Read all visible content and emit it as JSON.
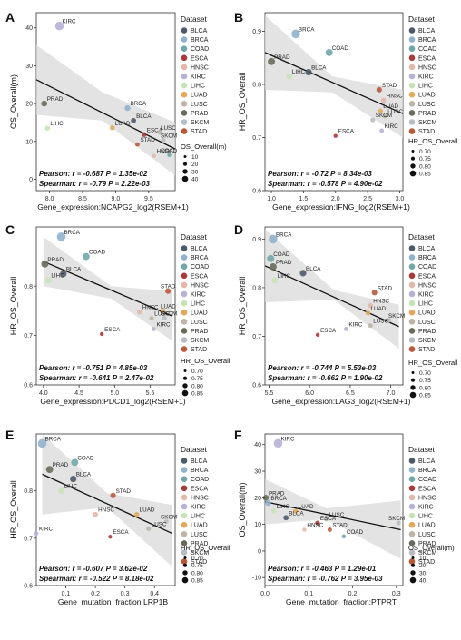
{
  "palette": {
    "BLCA": "#4d5a6b",
    "BRCA": "#8fb3cf",
    "COAD": "#6fa8a8",
    "ESCA": "#a83a3a",
    "HNSC": "#e3b8a8",
    "KIRC": "#b9b0d8",
    "LIHC": "#c6e3b6",
    "LUAD": "#e3a85a",
    "LUSC": "#bdb6a6",
    "PRAD": "#6a6a5a",
    "SKCM": "#b7bdc3",
    "STAD": "#b85a38"
  },
  "chart_data": [
    {
      "type": "scatter",
      "panel": "A",
      "xlabel": "Gene_expression:NCAPG2_log2(RSEM+1)",
      "ylabel": "OS_Overall(m)",
      "xlim": [
        7.8,
        9.9
      ],
      "ylim": [
        -3,
        44
      ],
      "xticks": [
        8.0,
        8.5,
        9.0,
        9.5
      ],
      "xtick_labels": [
        "8.0",
        "8.5",
        "9.0",
        "9.5"
      ],
      "yticks": [
        0,
        10,
        20,
        30,
        40
      ],
      "yreverse": false,
      "fit": [
        [
          7.8,
          26.3
        ],
        [
          9.9,
          8.0
        ]
      ],
      "band_upper": [
        [
          7.8,
          35.5
        ],
        [
          8.8,
          23.0
        ],
        [
          9.9,
          15.0
        ]
      ],
      "band_lower": [
        [
          7.8,
          17.0
        ],
        [
          8.8,
          15.5
        ],
        [
          9.9,
          1.0
        ]
      ],
      "points": [
        {
          "label": "KIRC",
          "x": 8.15,
          "y": 40.5,
          "size": 40
        },
        {
          "label": "PRAD",
          "x": 7.92,
          "y": 20.0,
          "size": 20
        },
        {
          "label": "LIHC",
          "x": 7.97,
          "y": 13.5,
          "size": 14
        },
        {
          "label": "BRCA",
          "x": 9.18,
          "y": 18.8,
          "size": 19
        },
        {
          "label": "BLCA",
          "x": 9.27,
          "y": 15.5,
          "size": 15
        },
        {
          "label": "LUAD",
          "x": 8.95,
          "y": 13.6,
          "size": 13
        },
        {
          "label": "ESCA",
          "x": 9.43,
          "y": 11.8,
          "size": 12
        },
        {
          "label": "LUSC",
          "x": 9.67,
          "y": 12.4,
          "size": 12
        },
        {
          "label": "SKCM",
          "x": 9.72,
          "y": 10.3,
          "size": 10
        },
        {
          "label": "STAD",
          "x": 9.33,
          "y": 9.2,
          "size": 9
        },
        {
          "label": "HNSC",
          "x": 9.58,
          "y": 6.2,
          "size": 6
        },
        {
          "label": "COAD",
          "x": 9.81,
          "y": 6.4,
          "size": 6
        }
      ],
      "stat_line1": "Pearson: r = -0.687 P = 1.35e-02",
      "stat_line2": "Spearman: r = -0.79 P = 2.22e-03",
      "legend_title": "Dataset",
      "legend_items": [
        "BLCA",
        "BRCA",
        "COAD",
        "ESCA",
        "HNSC",
        "KIRC",
        "LIHC",
        "LUAD",
        "LUSC",
        "PRAD",
        "SKCM",
        "STAD"
      ],
      "size_title": "OS_Overall(m)",
      "size_labels": [
        "10",
        "20",
        "30",
        "40"
      ]
    },
    {
      "type": "scatter",
      "panel": "B",
      "xlabel": "Gene_expression:IFNG_log2(RSEM+1)",
      "ylabel": "HR_OS_Overall",
      "xlim": [
        0.9,
        3.05
      ],
      "ylim": [
        0.6,
        0.935
      ],
      "xticks": [
        1.0,
        1.5,
        2.0,
        2.5,
        3.0
      ],
      "xtick_labels": [
        "1.0",
        "1.5",
        "2.0",
        "2.5",
        "3.0"
      ],
      "yticks": [
        0.6,
        0.7,
        0.8,
        0.9
      ],
      "yreverse": false,
      "fit": [
        [
          0.9,
          0.86
        ],
        [
          3.05,
          0.745
        ]
      ],
      "band_upper": [
        [
          0.9,
          0.93
        ],
        [
          1.95,
          0.815
        ],
        [
          3.05,
          0.79
        ]
      ],
      "band_lower": [
        [
          0.9,
          0.79
        ],
        [
          1.95,
          0.785
        ],
        [
          3.05,
          0.7
        ]
      ],
      "points": [
        {
          "label": "BRCA",
          "x": 1.38,
          "y": 0.895,
          "size": 0.85
        },
        {
          "label": "COAD",
          "x": 1.9,
          "y": 0.86,
          "size": 0.8
        },
        {
          "label": "PRAD",
          "x": 1.0,
          "y": 0.843,
          "size": 0.8
        },
        {
          "label": "BLCA",
          "x": 1.58,
          "y": 0.823,
          "size": 0.78
        },
        {
          "label": "LIHC",
          "x": 1.28,
          "y": 0.815,
          "size": 0.77
        },
        {
          "label": "STAD",
          "x": 2.68,
          "y": 0.79,
          "size": 0.75
        },
        {
          "label": "HNSC",
          "x": 2.75,
          "y": 0.77,
          "size": 0.74
        },
        {
          "label": "LUAD",
          "x": 2.7,
          "y": 0.75,
          "size": 0.73
        },
        {
          "label": "LUSC",
          "x": 2.77,
          "y": 0.74,
          "size": 0.72
        },
        {
          "label": "SKCM",
          "x": 2.58,
          "y": 0.733,
          "size": 0.72
        },
        {
          "label": "KIRC",
          "x": 2.72,
          "y": 0.713,
          "size": 0.71
        },
        {
          "label": "ESCA",
          "x": 2.0,
          "y": 0.703,
          "size": 0.7
        }
      ],
      "stat_line1": "Pearson: r = -0.72 P = 8.34e-03",
      "stat_line2": "Spearman: r = -0.578 P = 4.90e-02",
      "legend_title": "Dataset",
      "legend_items": [
        "BLCA",
        "BRCA",
        "COAD",
        "ESCA",
        "HNSC",
        "KIRC",
        "LIHC",
        "LUAD",
        "LUSC",
        "PRAD",
        "SKCM",
        "STAD"
      ],
      "size_title": "HR_OS_Overall",
      "size_labels": [
        "0.70",
        "0.75",
        "0.80",
        "0.85"
      ]
    },
    {
      "type": "scatter",
      "panel": "C",
      "xlabel": "Gene_expression:PDCD1_log2(RSEM+1)",
      "ylabel": "HR_OS_Overall",
      "xlim": [
        3.9,
        5.85
      ],
      "ylim": [
        0.6,
        0.92
      ],
      "xticks": [
        4.0,
        4.5,
        5.0,
        5.5
      ],
      "xtick_labels": [
        "4.0",
        "4.5",
        "5.0",
        "5.5"
      ],
      "yticks": [
        0.6,
        0.7,
        0.8
      ],
      "yreverse": false,
      "fit": [
        [
          4.0,
          0.85
        ],
        [
          5.8,
          0.74
        ]
      ],
      "band_upper": [
        [
          4.0,
          0.9
        ],
        [
          4.95,
          0.8
        ],
        [
          5.8,
          0.79
        ]
      ],
      "band_lower": [
        [
          4.0,
          0.8
        ],
        [
          4.95,
          0.775
        ],
        [
          5.8,
          0.69
        ]
      ],
      "points": [
        {
          "label": "BRCA",
          "x": 4.25,
          "y": 0.9,
          "size": 0.85
        },
        {
          "label": "COAD",
          "x": 4.6,
          "y": 0.86,
          "size": 0.8
        },
        {
          "label": "PRAD",
          "x": 4.02,
          "y": 0.845,
          "size": 0.8
        },
        {
          "label": "BLCA",
          "x": 4.28,
          "y": 0.825,
          "size": 0.78
        },
        {
          "label": "LIHC",
          "x": 4.07,
          "y": 0.812,
          "size": 0.77
        },
        {
          "label": "STAD",
          "x": 5.75,
          "y": 0.79,
          "size": 0.75
        },
        {
          "label": "LUAD",
          "x": 5.68,
          "y": 0.75,
          "size": 0.73
        },
        {
          "label": "HNSC",
          "x": 5.35,
          "y": 0.748,
          "size": 0.74
        },
        {
          "label": "LUSC",
          "x": 5.52,
          "y": 0.735,
          "size": 0.72
        },
        {
          "label": "SKCM",
          "x": 5.7,
          "y": 0.735,
          "size": 0.72
        },
        {
          "label": "KIRC",
          "x": 5.55,
          "y": 0.713,
          "size": 0.71
        },
        {
          "label": "ESCA",
          "x": 4.82,
          "y": 0.703,
          "size": 0.7
        }
      ],
      "stat_line1": "Pearson: r = -0.751 P = 4.85e-03",
      "stat_line2": "Spearman: r = -0.641 P = 2.47e-02",
      "legend_title": "Dataset",
      "legend_items": [
        "BLCA",
        "BRCA",
        "COAD",
        "ESCA",
        "HNSC",
        "KIRC",
        "LIHC",
        "LUAD",
        "LUSC",
        "PRAD",
        "SKCM",
        "STAD"
      ],
      "size_title": "HR_OS_Overall",
      "size_labels": [
        "0.70",
        "0.75",
        "0.80",
        "0.85"
      ]
    },
    {
      "type": "scatter",
      "panel": "D",
      "xlabel": "Gene_expression:LAG3_log2(RSEM+1)",
      "ylabel": "HR_OS_Overall",
      "xlim": [
        5.45,
        7.15
      ],
      "ylim": [
        0.6,
        0.925
      ],
      "xticks": [
        5.5,
        6.0,
        6.5,
        7.0
      ],
      "xtick_labels": [
        "5.5",
        "6.0",
        "6.5",
        "7.0"
      ],
      "yticks": [
        0.6,
        0.7,
        0.8,
        0.9
      ],
      "yreverse": false,
      "fit": [
        [
          5.45,
          0.845
        ],
        [
          7.1,
          0.72
        ]
      ],
      "band_upper": [
        [
          5.45,
          0.92
        ],
        [
          6.3,
          0.795
        ],
        [
          7.1,
          0.765
        ]
      ],
      "band_lower": [
        [
          5.45,
          0.77
        ],
        [
          6.3,
          0.775
        ],
        [
          7.1,
          0.675
        ]
      ],
      "points": [
        {
          "label": "BRCA",
          "x": 5.55,
          "y": 0.9,
          "size": 0.85
        },
        {
          "label": "COAD",
          "x": 5.52,
          "y": 0.86,
          "size": 0.8
        },
        {
          "label": "PRAD",
          "x": 5.55,
          "y": 0.843,
          "size": 0.8
        },
        {
          "label": "BLCA",
          "x": 5.92,
          "y": 0.83,
          "size": 0.78
        },
        {
          "label": "LIHC",
          "x": 5.57,
          "y": 0.815,
          "size": 0.77
        },
        {
          "label": "STAD",
          "x": 6.8,
          "y": 0.79,
          "size": 0.75
        },
        {
          "label": "HNSC",
          "x": 6.75,
          "y": 0.763,
          "size": 0.74
        },
        {
          "label": "LUAD",
          "x": 6.72,
          "y": 0.748,
          "size": 0.73
        },
        {
          "label": "SKCM",
          "x": 6.98,
          "y": 0.733,
          "size": 0.72
        },
        {
          "label": "LUSC",
          "x": 6.75,
          "y": 0.722,
          "size": 0.72
        },
        {
          "label": "KIRC",
          "x": 6.45,
          "y": 0.715,
          "size": 0.71
        },
        {
          "label": "ESCA",
          "x": 6.1,
          "y": 0.703,
          "size": 0.7
        }
      ],
      "stat_line1": "Pearson: r = -0.744 P = 5.53e-03",
      "stat_line2": "Spearman: r = -0.662 P = 1.90e-02",
      "legend_title": "Dataset",
      "legend_items": [
        "BLCA",
        "BRCA",
        "COAD",
        "ESCA",
        "HNSC",
        "KIRC",
        "LIHC",
        "LUAD",
        "LUSC",
        "PRAD",
        "SKCM",
        "STAD"
      ],
      "size_title": "HR_OS_Overall",
      "size_labels": [
        "0.70",
        "0.75",
        "0.80",
        "0.85"
      ]
    },
    {
      "type": "scatter",
      "panel": "E",
      "xlabel": "Gene_mutation_fraction:LRP1B",
      "ylabel": "HR_OS_Overall",
      "xlim": [
        0.0,
        0.47
      ],
      "ylim": [
        0.6,
        0.92
      ],
      "xticks": [
        0.1,
        0.2,
        0.3,
        0.4
      ],
      "xtick_labels": [
        "0.1",
        "0.2",
        "0.3",
        "0.4"
      ],
      "yticks": [
        0.6,
        0.7,
        0.8
      ],
      "yreverse": false,
      "fit": [
        [
          0.02,
          0.835
        ],
        [
          0.46,
          0.71
        ]
      ],
      "band_upper": [
        [
          0.02,
          0.92
        ],
        [
          0.24,
          0.795
        ],
        [
          0.46,
          0.77
        ]
      ],
      "band_lower": [
        [
          0.02,
          0.75
        ],
        [
          0.24,
          0.765
        ],
        [
          0.46,
          0.64
        ]
      ],
      "points": [
        {
          "label": "BRCA",
          "x": 0.02,
          "y": 0.9,
          "size": 0.85
        },
        {
          "label": "COAD",
          "x": 0.13,
          "y": 0.86,
          "size": 0.8
        },
        {
          "label": "PRAD",
          "x": 0.045,
          "y": 0.845,
          "size": 0.8
        },
        {
          "label": "BLCA",
          "x": 0.125,
          "y": 0.825,
          "size": 0.78
        },
        {
          "label": "LIHC",
          "x": 0.085,
          "y": 0.8,
          "size": 0.77
        },
        {
          "label": "STAD",
          "x": 0.26,
          "y": 0.79,
          "size": 0.75
        },
        {
          "label": "HNSC",
          "x": 0.2,
          "y": 0.75,
          "size": 0.74
        },
        {
          "label": "LUAD",
          "x": 0.34,
          "y": 0.75,
          "size": 0.73
        },
        {
          "label": "SKCM",
          "x": 0.44,
          "y": 0.735,
          "size": 0.72
        },
        {
          "label": "LUSC",
          "x": 0.38,
          "y": 0.72,
          "size": 0.72
        },
        {
          "label": "KIRC",
          "x": 0.0,
          "y": 0.71,
          "size": 0.71
        },
        {
          "label": "ESCA",
          "x": 0.25,
          "y": 0.703,
          "size": 0.7
        }
      ],
      "stat_line1": "Pearson: r = -0.607 P = 3.62e-02",
      "stat_line2": "Spearman: r = -0.522 P = 8.18e-02",
      "legend_title": "Dataset",
      "legend_items": [
        "BLCA",
        "BRCA",
        "COAD",
        "ESCA",
        "HNSC",
        "KIRC",
        "LIHC",
        "LUAD",
        "LUSC",
        "PRAD",
        "SKCM",
        "STAD"
      ],
      "size_title": "HR_OS_Overall",
      "size_labels": [
        "0.70",
        "0.75",
        "0.80",
        "0.85"
      ]
    },
    {
      "type": "scatter",
      "panel": "F",
      "xlabel": "Gene_mutation_fraction:PTPRT",
      "ylabel": "OS_Overall(m)",
      "xlim": [
        0.0,
        0.315
      ],
      "ylim": [
        -13,
        44
      ],
      "xticks": [
        0.0,
        0.1,
        0.2,
        0.3
      ],
      "xtick_labels": [
        "0.0",
        "0.1",
        "0.2",
        "0.3"
      ],
      "yticks": [
        -10,
        0,
        10,
        20,
        30,
        40
      ],
      "yreverse": false,
      "fit": [
        [
          0.0,
          18.5
        ],
        [
          0.31,
          8.0
        ]
      ],
      "band_upper": [
        [
          0.0,
          27.0
        ],
        [
          0.14,
          16.0
        ],
        [
          0.31,
          19.0
        ]
      ],
      "band_lower": [
        [
          0.0,
          10.0
        ],
        [
          0.14,
          12.0
        ],
        [
          0.31,
          -3.0
        ]
      ],
      "points": [
        {
          "label": "KIRC",
          "x": 0.03,
          "y": 40.5,
          "size": 40
        },
        {
          "label": "PRAD",
          "x": 0.002,
          "y": 20.0,
          "size": 20
        },
        {
          "label": "BRCA",
          "x": 0.007,
          "y": 18.0,
          "size": 19
        },
        {
          "label": "LIHC",
          "x": 0.02,
          "y": 15.0,
          "size": 14
        },
        {
          "label": "LUAD",
          "x": 0.07,
          "y": 15.0,
          "size": 13
        },
        {
          "label": "BLCA",
          "x": 0.048,
          "y": 12.5,
          "size": 15
        },
        {
          "label": "LUSC",
          "x": 0.14,
          "y": 12.0,
          "size": 12
        },
        {
          "label": "ESCA",
          "x": 0.12,
          "y": 10.5,
          "size": 12
        },
        {
          "label": "HNSC",
          "x": 0.09,
          "y": 8.0,
          "size": 6
        },
        {
          "label": "STAD",
          "x": 0.148,
          "y": 8.0,
          "size": 9
        },
        {
          "label": "COAD",
          "x": 0.18,
          "y": 5.5,
          "size": 6
        },
        {
          "label": "SKCM",
          "x": 0.305,
          "y": 10.5,
          "size": 10
        }
      ],
      "stat_line1": "Pearson: r = -0.463 P = 1.29e-01",
      "stat_line2": "Spearman: r = -0.762 P = 3.95e-03",
      "legend_title": "Dataset",
      "legend_items": [
        "BLCA",
        "BRCA",
        "COAD",
        "ESCA",
        "HNSC",
        "KIRC",
        "LIHC",
        "LUAD",
        "LUSC",
        "PRAD",
        "SKCM",
        "STAD"
      ],
      "size_title": "OS_Overall(m)",
      "size_labels": [
        "10",
        "20",
        "30",
        "40"
      ]
    }
  ]
}
